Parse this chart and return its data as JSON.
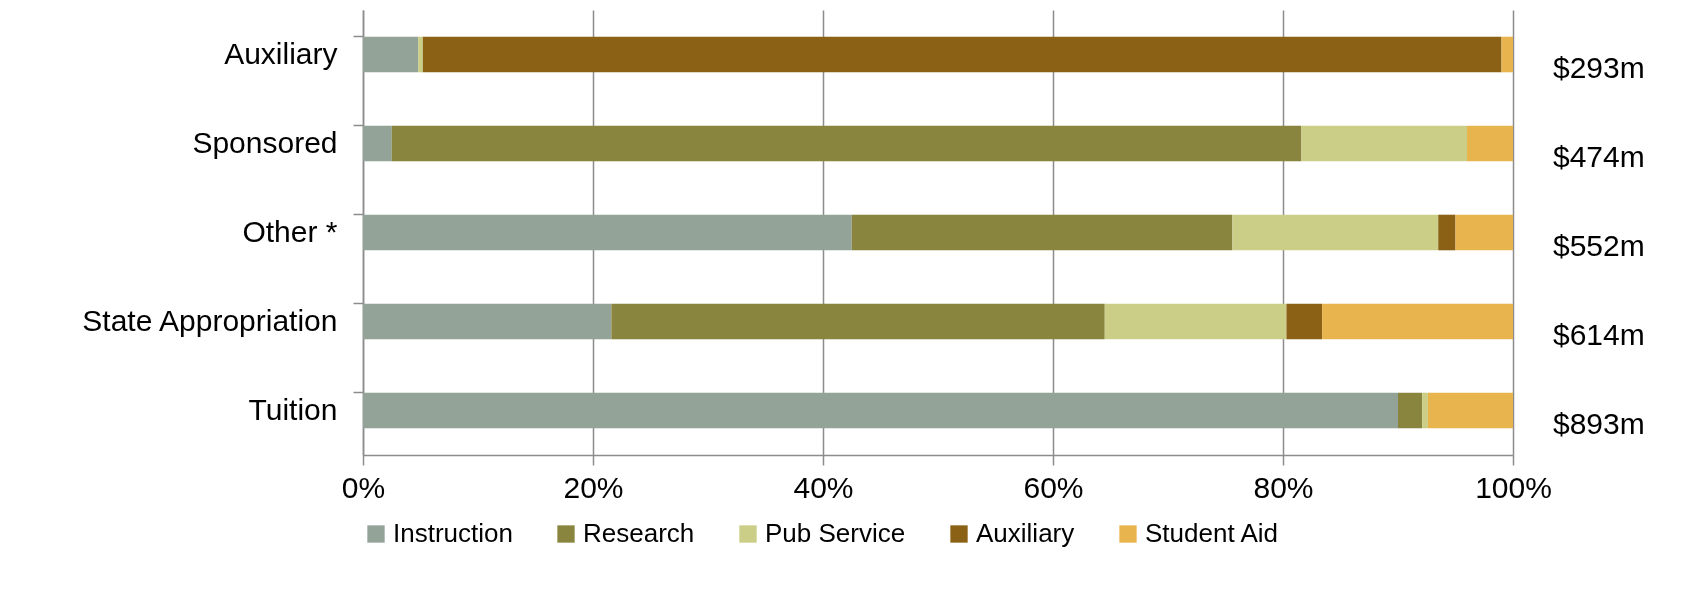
{
  "chart_data": {
    "type": "bar",
    "orientation": "horizontal",
    "stacked": true,
    "categories": [
      "Auxiliary",
      "Sponsored",
      "Other *",
      "State Appropriation",
      "Tuition"
    ],
    "series": [
      {
        "name": "Instruction",
        "color": "#93a398",
        "values": [
          4.8,
          2.5,
          42.5,
          21.6,
          90.0
        ]
      },
      {
        "name": "Research",
        "color": "#89843e",
        "values": [
          0,
          79.1,
          33.1,
          42.9,
          2.1
        ]
      },
      {
        "name": "Pub Service",
        "color": "#cbce86",
        "values": [
          0.4,
          14.4,
          17.9,
          15.8,
          0.5
        ]
      },
      {
        "name": "Auxiliary",
        "color": "#8a6115",
        "values": [
          93.8,
          0,
          1.5,
          3.1,
          0
        ]
      },
      {
        "name": "Student Aid",
        "color": "#e8b44e",
        "values": [
          1.0,
          4.0,
          5.0,
          16.6,
          7.4
        ]
      }
    ],
    "annotations": [
      "$293m",
      "$474m",
      "$552m",
      "$614m",
      "$893m"
    ],
    "xlim": [
      0,
      100
    ],
    "xticks": [
      {
        "value": 0,
        "label": "0%"
      },
      {
        "value": 20,
        "label": "20%"
      },
      {
        "value": 40,
        "label": "40%"
      },
      {
        "value": 60,
        "label": "60%"
      },
      {
        "value": 80,
        "label": "80%"
      },
      {
        "value": 100,
        "label": "100%"
      }
    ],
    "grid": "x",
    "legend": "bottom"
  }
}
